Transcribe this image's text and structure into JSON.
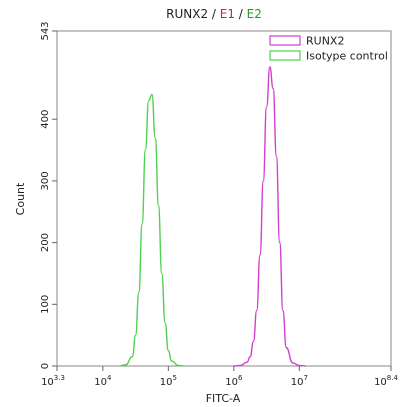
{
  "chart_data": {
    "type": "area",
    "title": {
      "prefix": "RUNX2",
      "sep1": " / ",
      "e1": "E1",
      "sep2": " / ",
      "e2": "E2",
      "prefix_color": "#222222",
      "sep_color": "#222222",
      "e1_color": "#e02020",
      "e2_color": "#20a020"
    },
    "xlabel": "FITC-A",
    "ylabel": "Count",
    "x_scale": "log10",
    "xlim": [
      3.3,
      8.4
    ],
    "ylim": [
      0,
      543
    ],
    "x_ticks": [
      {
        "base": "10",
        "exp": "3.3",
        "value": 3.3
      },
      {
        "base": "10",
        "exp": "4",
        "value": 4
      },
      {
        "base": "10",
        "exp": "5",
        "value": 5
      },
      {
        "base": "10",
        "exp": "6",
        "value": 6
      },
      {
        "base": "10",
        "exp": "7",
        "value": 7
      },
      {
        "base": "10",
        "exp": "8.4",
        "value": 8.4
      }
    ],
    "y_ticks": [
      {
        "label": "0",
        "value": 0
      },
      {
        "label": "100",
        "value": 100
      },
      {
        "label": "200",
        "value": 200
      },
      {
        "label": "300",
        "value": 300
      },
      {
        "label": "400",
        "value": 400
      },
      {
        "label": "543",
        "value": 543
      }
    ],
    "legend_position": "top-right",
    "series": [
      {
        "name": "RUNX2",
        "color": "#d040d0",
        "x": [
          6.0,
          6.1,
          6.2,
          6.25,
          6.3,
          6.35,
          6.4,
          6.45,
          6.5,
          6.55,
          6.6,
          6.65,
          6.7,
          6.75,
          6.8,
          6.9,
          7.0,
          7.1
        ],
        "y": [
          0,
          1,
          6,
          15,
          40,
          90,
          180,
          300,
          420,
          485,
          450,
          340,
          200,
          90,
          30,
          5,
          1,
          0
        ]
      },
      {
        "name": "Isotype control",
        "color": "#50d050",
        "x": [
          4.25,
          4.35,
          4.45,
          4.5,
          4.55,
          4.6,
          4.65,
          4.7,
          4.75,
          4.8,
          4.85,
          4.9,
          4.95,
          5.0,
          5.05,
          5.15,
          5.25
        ],
        "y": [
          0,
          2,
          15,
          50,
          120,
          230,
          350,
          430,
          440,
          370,
          260,
          150,
          70,
          25,
          8,
          1,
          0
        ]
      }
    ]
  }
}
